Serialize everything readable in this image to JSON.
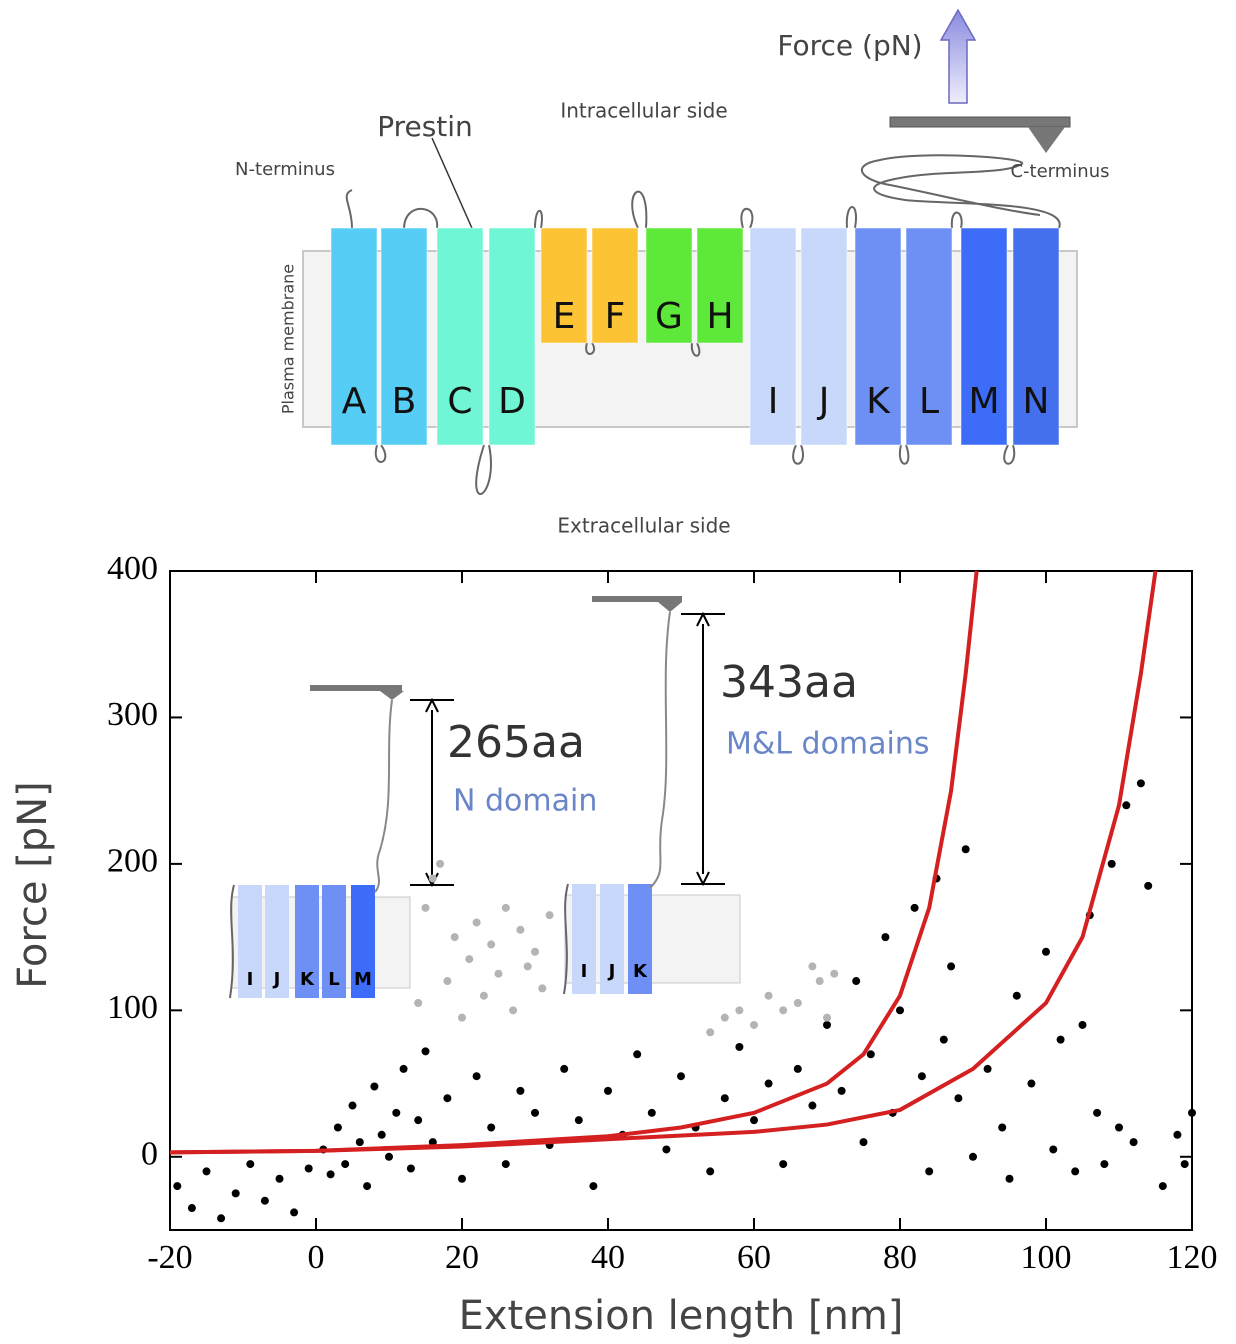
{
  "diagram": {
    "force_label": "Force (pN)",
    "prestin_label": "Prestin",
    "intracellular_label": "Intracellular side",
    "extracellular_label": "Extracellular side",
    "n_terminus_label": "N-terminus",
    "c_terminus_label": "C-terminus",
    "membrane_label": "Plasma membrane",
    "helices": [
      {
        "label": "A",
        "color": "#55cdf5"
      },
      {
        "label": "B",
        "color": "#55cdf5"
      },
      {
        "label": "C",
        "color": "#70f5d5"
      },
      {
        "label": "D",
        "color": "#70f5d5"
      },
      {
        "label": "E",
        "color": "#fcc435"
      },
      {
        "label": "F",
        "color": "#fcc435"
      },
      {
        "label": "G",
        "color": "#5ee83a"
      },
      {
        "label": "H",
        "color": "#5ee83a"
      },
      {
        "label": "I",
        "color": "#c8d8fa"
      },
      {
        "label": "J",
        "color": "#c8d8fa"
      },
      {
        "label": "K",
        "color": "#6e90f5"
      },
      {
        "label": "L",
        "color": "#6e90f5"
      },
      {
        "label": "M",
        "color": "#3c6cf8"
      },
      {
        "label": "N",
        "color": "#4470ee"
      }
    ]
  },
  "chart_data": {
    "type": "scatter",
    "xlabel": "Extension length [nm]",
    "ylabel": "Force [pN]",
    "xlim": [
      -20,
      120
    ],
    "ylim": [
      -50,
      400
    ],
    "xticks": [
      -20,
      0,
      20,
      40,
      60,
      80,
      100,
      120
    ],
    "yticks": [
      0,
      100,
      200,
      300,
      400
    ],
    "series": [
      {
        "color": "#000000",
        "x": [
          -19,
          -17,
          -15,
          -13,
          -11,
          -9,
          -7,
          -5,
          -3,
          -1,
          1,
          2,
          3,
          4,
          5,
          6,
          7,
          8,
          9,
          10,
          11,
          12,
          13,
          14,
          15,
          16,
          18,
          20,
          22,
          24,
          26,
          28,
          30,
          32,
          34,
          36,
          38,
          40,
          42,
          44,
          46,
          48,
          50,
          52,
          54,
          56,
          58,
          60,
          62,
          64,
          66,
          68,
          70,
          72,
          74,
          75,
          76,
          78,
          79,
          80,
          82,
          83,
          84,
          85,
          86,
          87,
          88,
          89,
          90,
          92,
          94,
          95,
          96,
          98,
          100,
          101,
          102,
          104,
          105,
          106,
          107,
          108,
          109,
          110,
          111,
          112,
          113,
          114,
          116,
          118,
          119,
          120
        ],
        "values": [
          -20,
          -35,
          -10,
          -42,
          -25,
          -5,
          -30,
          -15,
          -38,
          -8,
          5,
          -12,
          20,
          -5,
          35,
          10,
          -20,
          48,
          15,
          0,
          30,
          60,
          -8,
          25,
          72,
          10,
          40,
          -15,
          55,
          20,
          -5,
          45,
          30,
          8,
          60,
          25,
          -20,
          45,
          15,
          70,
          30,
          5,
          55,
          20,
          -10,
          40,
          75,
          25,
          50,
          -5,
          60,
          35,
          90,
          45,
          120,
          10,
          70,
          150,
          30,
          100,
          170,
          55,
          -10,
          190,
          80,
          130,
          40,
          210,
          0,
          60,
          20,
          -15,
          110,
          50,
          140,
          5,
          80,
          -10,
          90,
          165,
          30,
          -5,
          200,
          20,
          240,
          10,
          255,
          185,
          -20,
          15,
          -5,
          30
        ]
      },
      {
        "color": "#b4b4b4",
        "x": [
          14,
          15,
          16,
          17,
          18,
          19,
          20,
          21,
          22,
          23,
          24,
          25,
          26,
          27,
          28,
          29,
          30,
          31,
          32,
          54,
          56,
          58,
          60,
          62,
          64,
          66,
          68,
          69,
          70,
          71
        ],
        "values": [
          105,
          170,
          190,
          200,
          120,
          150,
          95,
          135,
          160,
          110,
          145,
          125,
          170,
          100,
          155,
          130,
          140,
          115,
          165,
          85,
          95,
          100,
          90,
          110,
          100,
          105,
          130,
          120,
          95,
          125
        ]
      }
    ],
    "curves": [
      {
        "color": "#d42020",
        "x": [
          -20,
          0,
          20,
          40,
          50,
          60,
          70,
          75,
          80,
          84,
          87,
          89,
          90.5
        ],
        "values": [
          3,
          4,
          8,
          14,
          20,
          30,
          50,
          70,
          110,
          170,
          250,
          330,
          400
        ]
      },
      {
        "color": "#d42020",
        "x": [
          -20,
          0,
          20,
          40,
          60,
          70,
          80,
          90,
          100,
          105,
          110,
          113,
          115
        ],
        "values": [
          3,
          4,
          7,
          12,
          17,
          22,
          32,
          60,
          105,
          150,
          240,
          330,
          400
        ]
      }
    ],
    "annotations": [
      {
        "length": "265aa",
        "domain": "N domain",
        "helices": [
          {
            "label": "I",
            "color": "#c8d8fa"
          },
          {
            "label": "J",
            "color": "#c8d8fa"
          },
          {
            "label": "K",
            "color": "#6e90f5"
          },
          {
            "label": "L",
            "color": "#6e90f5"
          },
          {
            "label": "M",
            "color": "#3c6cf8"
          }
        ]
      },
      {
        "length": "343aa",
        "domain": "M&L domains",
        "helices": [
          {
            "label": "I",
            "color": "#c8d8fa"
          },
          {
            "label": "J",
            "color": "#c8d8fa"
          },
          {
            "label": "K",
            "color": "#6e90f5"
          }
        ]
      }
    ]
  }
}
